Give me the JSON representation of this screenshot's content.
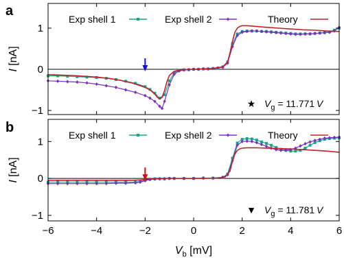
{
  "chart_data": [
    {
      "type": "line",
      "panel": "a",
      "xlabel": "V",
      "xlabel_sub": "b",
      "xlabel_unit": "[mV]",
      "ylabel": "I",
      "ylabel_unit": "[nA]",
      "xlim": [
        -6,
        6
      ],
      "ylim": [
        -1.1,
        1.6
      ],
      "xticks": [
        -6,
        -4,
        -2,
        0,
        2,
        4,
        6
      ],
      "yticks": [
        -1,
        0,
        1
      ],
      "grid": false,
      "legend": "top",
      "zero_line": true,
      "arrow": {
        "x": -2,
        "color": "#1010d8"
      },
      "annotation": {
        "symbol": "★",
        "var": "V",
        "sub": "g",
        "text": "= 11.771",
        "unit": "V"
      },
      "series": [
        {
          "name": "Exp shell 1",
          "color": "#17a589",
          "marker": "square",
          "x": [
            -6.0,
            -5.6,
            -5.2,
            -4.8,
            -4.4,
            -4.0,
            -3.6,
            -3.2,
            -2.8,
            -2.4,
            -2.0,
            -1.8,
            -1.6,
            -1.4,
            -1.2,
            -1.0,
            -0.8,
            -0.6,
            -0.4,
            -0.2,
            0.0,
            0.2,
            0.4,
            0.6,
            0.8,
            1.0,
            1.2,
            1.4,
            1.6,
            1.8,
            2.0,
            2.2,
            2.4,
            2.6,
            2.8,
            3.0,
            3.2,
            3.4,
            3.6,
            3.8,
            4.0,
            4.2,
            4.4,
            4.6,
            4.8,
            5.0,
            5.2,
            5.4,
            5.6,
            5.8,
            6.0
          ],
          "y": [
            -0.16,
            -0.16,
            -0.17,
            -0.18,
            -0.19,
            -0.2,
            -0.22,
            -0.25,
            -0.29,
            -0.34,
            -0.42,
            -0.49,
            -0.58,
            -0.7,
            -0.62,
            -0.28,
            -0.08,
            -0.03,
            -0.01,
            -0.01,
            0.0,
            0.0,
            0.01,
            0.01,
            0.02,
            0.03,
            0.06,
            0.18,
            0.62,
            0.86,
            0.92,
            0.93,
            0.93,
            0.93,
            0.92,
            0.92,
            0.91,
            0.9,
            0.89,
            0.88,
            0.87,
            0.86,
            0.86,
            0.86,
            0.86,
            0.87,
            0.88,
            0.89,
            0.91,
            0.95,
            1.0
          ]
        },
        {
          "name": "Exp shell 2",
          "color": "#7b2fbe",
          "marker": "diamond",
          "x": [
            -6.0,
            -5.6,
            -5.2,
            -4.8,
            -4.4,
            -4.0,
            -3.6,
            -3.2,
            -2.8,
            -2.4,
            -2.0,
            -1.8,
            -1.6,
            -1.4,
            -1.3,
            -1.2,
            -1.0,
            -0.8,
            -0.6,
            -0.4,
            -0.2,
            0.0,
            0.2,
            0.4,
            0.6,
            0.8,
            1.0,
            1.2,
            1.4,
            1.6,
            1.8,
            2.0,
            2.2,
            2.4,
            2.6,
            2.8,
            3.0,
            3.2,
            3.4,
            3.6,
            3.8,
            4.0,
            4.2,
            4.4,
            4.6,
            4.8,
            5.0,
            5.2,
            5.4,
            5.6,
            5.8,
            6.0
          ],
          "y": [
            -0.28,
            -0.29,
            -0.3,
            -0.31,
            -0.33,
            -0.36,
            -0.4,
            -0.44,
            -0.5,
            -0.56,
            -0.64,
            -0.7,
            -0.78,
            -0.9,
            -0.95,
            -0.78,
            -0.38,
            -0.12,
            -0.04,
            -0.02,
            -0.01,
            0.0,
            0.0,
            0.01,
            0.01,
            0.02,
            0.03,
            0.05,
            0.15,
            0.55,
            0.82,
            0.9,
            0.92,
            0.93,
            0.93,
            0.92,
            0.91,
            0.9,
            0.89,
            0.88,
            0.87,
            0.86,
            0.85,
            0.85,
            0.86,
            0.86,
            0.87,
            0.88,
            0.89,
            0.9,
            0.93,
            1.02
          ]
        },
        {
          "name": "Theory",
          "color": "#c0202a",
          "marker": "none",
          "x": [
            -6.0,
            -5.5,
            -5.0,
            -4.5,
            -4.0,
            -3.5,
            -3.0,
            -2.5,
            -2.0,
            -1.8,
            -1.6,
            -1.5,
            -1.4,
            -1.3,
            -1.2,
            -1.1,
            -1.0,
            -0.8,
            -0.6,
            -0.4,
            -0.2,
            0.0,
            0.4,
            0.8,
            1.2,
            1.4,
            1.5,
            1.6,
            1.7,
            1.8,
            1.9,
            2.0,
            2.2,
            2.6,
            3.0,
            3.5,
            4.0,
            4.5,
            5.0,
            5.5,
            6.0
          ],
          "y": [
            -0.13,
            -0.14,
            -0.15,
            -0.17,
            -0.19,
            -0.22,
            -0.27,
            -0.34,
            -0.44,
            -0.5,
            -0.6,
            -0.68,
            -0.72,
            -0.68,
            -0.52,
            -0.3,
            -0.15,
            -0.05,
            -0.02,
            -0.01,
            0.0,
            0.0,
            0.01,
            0.02,
            0.06,
            0.18,
            0.4,
            0.68,
            0.9,
            1.0,
            1.04,
            1.06,
            1.06,
            1.04,
            1.02,
            1.0,
            0.98,
            0.96,
            0.95,
            0.93,
            0.92
          ]
        }
      ]
    },
    {
      "type": "line",
      "panel": "b",
      "xlabel": "V",
      "xlabel_sub": "b",
      "xlabel_unit": "[mV]",
      "ylabel": "I",
      "ylabel_unit": "[nA]",
      "xlim": [
        -6,
        6
      ],
      "ylim": [
        -1.15,
        1.6
      ],
      "xticks": [
        -6,
        -4,
        -2,
        0,
        2,
        4,
        6
      ],
      "yticks": [
        -1,
        0,
        1
      ],
      "grid": false,
      "legend": "top",
      "zero_line": true,
      "arrow": {
        "x": -2,
        "color": "#d01010"
      },
      "annotation": {
        "symbol": "▼",
        "var": "V",
        "sub": "g",
        "text": "= 11.781",
        "unit": "V"
      },
      "series": [
        {
          "name": "Exp shell 1",
          "color": "#17a589",
          "marker": "square",
          "x": [
            -6.0,
            -5.6,
            -5.2,
            -4.8,
            -4.4,
            -4.0,
            -3.6,
            -3.2,
            -2.8,
            -2.4,
            -2.2,
            -2.0,
            -1.8,
            -1.6,
            -1.4,
            -1.2,
            -1.0,
            -0.8,
            -0.4,
            0.0,
            0.4,
            0.8,
            1.2,
            1.4,
            1.6,
            1.8,
            2.0,
            2.2,
            2.4,
            2.6,
            2.8,
            3.0,
            3.2,
            3.4,
            3.6,
            3.8,
            4.0,
            4.2,
            4.4,
            4.6,
            4.8,
            5.0,
            5.2,
            5.4,
            5.6,
            5.8,
            6.0
          ],
          "y": [
            -0.1,
            -0.1,
            -0.1,
            -0.1,
            -0.1,
            -0.1,
            -0.1,
            -0.1,
            -0.1,
            -0.1,
            -0.08,
            -0.05,
            -0.02,
            -0.01,
            -0.01,
            -0.01,
            0.0,
            0.0,
            0.0,
            0.0,
            0.01,
            0.01,
            0.03,
            0.12,
            0.55,
            0.96,
            1.06,
            1.08,
            1.07,
            1.04,
            0.99,
            0.95,
            0.9,
            0.84,
            0.79,
            0.76,
            0.74,
            0.74,
            0.76,
            0.82,
            0.9,
            0.97,
            1.02,
            1.06,
            1.08,
            1.09,
            1.1
          ]
        },
        {
          "name": "Exp shell 2",
          "color": "#7b2fbe",
          "marker": "diamond",
          "x": [
            -6.0,
            -5.6,
            -5.2,
            -4.8,
            -4.4,
            -4.0,
            -3.6,
            -3.2,
            -2.8,
            -2.4,
            -2.2,
            -2.0,
            -1.8,
            -1.6,
            -1.4,
            -1.2,
            -1.0,
            -0.8,
            -0.4,
            0.0,
            0.4,
            0.8,
            1.2,
            1.4,
            1.6,
            1.8,
            2.0,
            2.2,
            2.4,
            2.6,
            2.8,
            3.0,
            3.2,
            3.4,
            3.6,
            3.8,
            4.0,
            4.2,
            4.4,
            4.6,
            4.8,
            5.0,
            5.2,
            5.4,
            5.6,
            5.8,
            6.0
          ],
          "y": [
            -0.14,
            -0.14,
            -0.14,
            -0.14,
            -0.14,
            -0.14,
            -0.14,
            -0.13,
            -0.13,
            -0.12,
            -0.1,
            -0.06,
            -0.03,
            -0.02,
            -0.01,
            -0.01,
            0.0,
            0.0,
            0.0,
            0.0,
            0.01,
            0.01,
            0.03,
            0.1,
            0.48,
            0.9,
            1.0,
            1.01,
            1.0,
            0.97,
            0.92,
            0.87,
            0.82,
            0.78,
            0.76,
            0.76,
            0.78,
            0.82,
            0.88,
            0.94,
            0.99,
            1.03,
            1.06,
            1.09,
            1.1,
            1.11,
            1.12
          ]
        },
        {
          "name": "Theory",
          "color": "#c0202a",
          "marker": "none",
          "x": [
            -6.0,
            -5.0,
            -4.0,
            -3.0,
            -2.5,
            -2.2,
            -2.0,
            -1.8,
            -1.5,
            -1.0,
            0.0,
            1.0,
            1.3,
            1.5,
            1.6,
            1.7,
            1.8,
            1.9,
            2.0,
            2.2,
            2.6,
            3.0,
            3.5,
            4.0,
            4.5,
            5.0,
            5.5,
            6.0
          ],
          "y": [
            -0.05,
            -0.05,
            -0.05,
            -0.05,
            -0.05,
            -0.04,
            -0.03,
            -0.01,
            0.0,
            0.0,
            0.0,
            0.01,
            0.04,
            0.2,
            0.46,
            0.66,
            0.76,
            0.8,
            0.82,
            0.83,
            0.83,
            0.82,
            0.81,
            0.8,
            0.78,
            0.76,
            0.74,
            0.71
          ]
        }
      ]
    }
  ]
}
